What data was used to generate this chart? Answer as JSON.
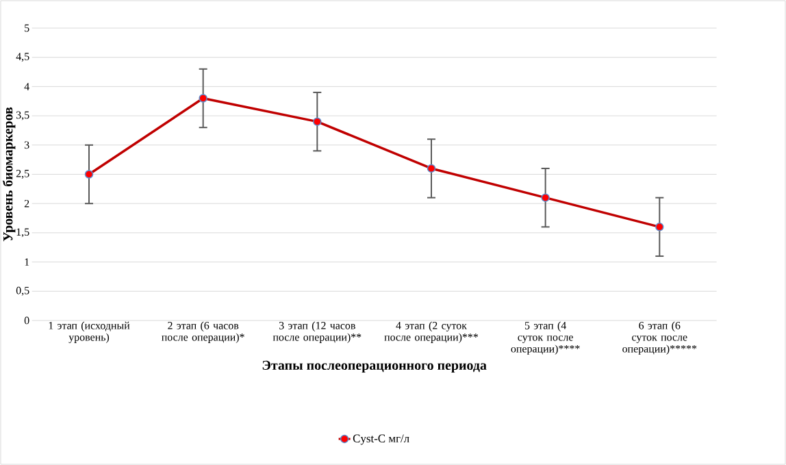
{
  "chart_data": {
    "type": "line",
    "xlabel": "Этапы послеоперационного периода",
    "ylabel": "Уровень биомаркеров",
    "categories": [
      "1 этап (исходный уровень)",
      "2 этап (6 часов после операции)*",
      "3 этап (12 часов после операции)**",
      "4 этап (2 суток после операции)***",
      "5 этап (4 суток после операции)****",
      "6 этап (6 суток после операции)*****"
    ],
    "series": [
      {
        "name": "Cyst-C мг/л",
        "color": "#c00000",
        "values": [
          2.5,
          3.8,
          3.4,
          2.6,
          2.1,
          1.6
        ],
        "errors": [
          0.5,
          0.5,
          0.5,
          0.5,
          0.5,
          0.5
        ]
      }
    ],
    "ylim": [
      0,
      5
    ],
    "yticks": [
      0,
      {
        "value": 0.5,
        "label": "0,5"
      },
      1,
      {
        "value": 1.5,
        "label": "1,5"
      },
      2,
      {
        "value": 2.5,
        "label": "2,5"
      },
      3,
      {
        "value": 3.5,
        "label": "3,5"
      },
      4,
      {
        "value": 4.5,
        "label": "4,5"
      },
      5
    ],
    "grid": "y",
    "legend": "bottom",
    "marker": "circle",
    "line_style": "solid"
  }
}
